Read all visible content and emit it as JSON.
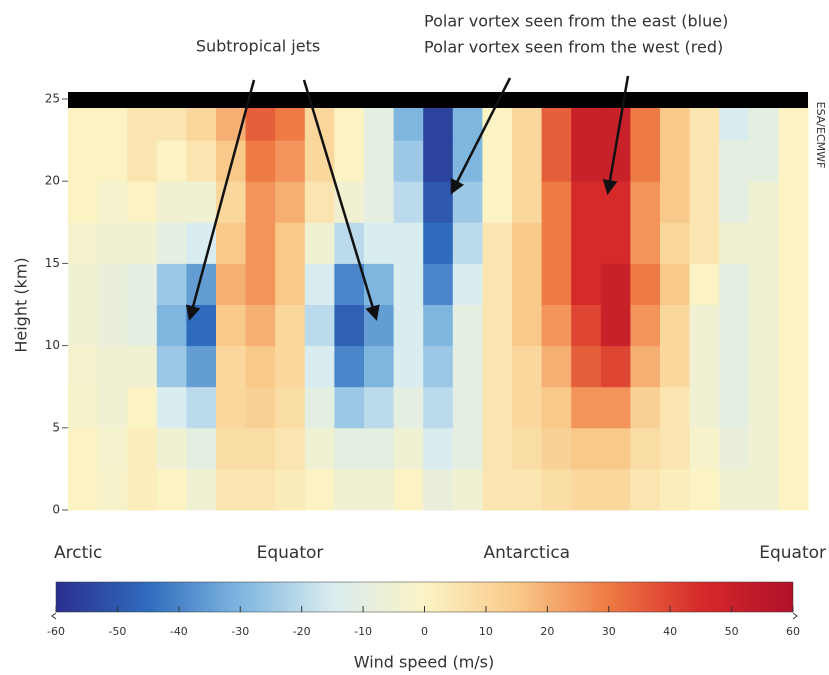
{
  "chart_data": {
    "type": "heatmap",
    "ylabel": "Height (km)",
    "ylim": [
      0,
      25
    ],
    "yticks": [
      0,
      5,
      10,
      15,
      20,
      25
    ],
    "categories": [
      "Arctic",
      null,
      null,
      null,
      null,
      null,
      null,
      "Equator",
      null,
      null,
      null,
      null,
      null,
      null,
      null,
      "Antarctica",
      null,
      null,
      null,
      null,
      null,
      null,
      null,
      null,
      "Equator"
    ],
    "z": [
      [
        0,
        -2,
        2,
        0,
        -5,
        5,
        5,
        3,
        0,
        -5,
        -5,
        0,
        -8,
        -5,
        5,
        5,
        8,
        10,
        10,
        5,
        2,
        0,
        -5,
        -5,
        0
      ],
      [
        0,
        -3,
        2,
        -5,
        -10,
        8,
        8,
        5,
        -5,
        -10,
        -10,
        -5,
        -15,
        -10,
        5,
        8,
        12,
        15,
        15,
        8,
        5,
        -2,
        -8,
        -5,
        0
      ],
      [
        -2,
        -5,
        0,
        -15,
        -20,
        10,
        12,
        8,
        -10,
        -25,
        -20,
        -10,
        -20,
        -10,
        5,
        10,
        15,
        25,
        25,
        12,
        5,
        -5,
        -10,
        -5,
        0
      ],
      [
        -3,
        -5,
        -5,
        -25,
        -35,
        10,
        15,
        10,
        -15,
        -40,
        -30,
        -15,
        -25,
        -10,
        5,
        10,
        20,
        35,
        40,
        20,
        10,
        -5,
        -10,
        -5,
        0
      ],
      [
        -5,
        -8,
        -10,
        -30,
        -45,
        15,
        20,
        10,
        -20,
        -48,
        -35,
        -15,
        -30,
        -10,
        5,
        15,
        25,
        40,
        50,
        25,
        10,
        -5,
        -10,
        -5,
        0
      ],
      [
        -5,
        -8,
        -10,
        -25,
        -35,
        20,
        25,
        15,
        -15,
        -40,
        -30,
        -15,
        -40,
        -15,
        5,
        15,
        30,
        45,
        50,
        30,
        15,
        0,
        -10,
        -5,
        0
      ],
      [
        -3,
        -5,
        -5,
        -10,
        -15,
        15,
        25,
        15,
        -5,
        -20,
        -15,
        -15,
        -45,
        -20,
        5,
        15,
        30,
        45,
        45,
        25,
        10,
        5,
        -5,
        -5,
        0
      ],
      [
        0,
        -3,
        0,
        -5,
        -5,
        10,
        25,
        20,
        5,
        -5,
        -10,
        -20,
        -50,
        -25,
        0,
        10,
        30,
        45,
        45,
        25,
        15,
        5,
        -10,
        -5,
        0
      ],
      [
        0,
        0,
        5,
        0,
        5,
        15,
        30,
        25,
        10,
        0,
        -10,
        -25,
        -55,
        -30,
        0,
        10,
        35,
        50,
        50,
        30,
        15,
        5,
        -10,
        -10,
        0
      ],
      [
        0,
        0,
        5,
        5,
        10,
        20,
        35,
        30,
        10,
        0,
        -10,
        -30,
        -55,
        -30,
        0,
        10,
        35,
        50,
        50,
        30,
        15,
        5,
        -15,
        -10,
        0
      ]
    ],
    "colorscale": [
      "#2b2f8f",
      "#2f6cbd",
      "#7fb6e0",
      "#d9ecf0",
      "#fbf3c4",
      "#f9c98a",
      "#ee7a44",
      "#d62a2a",
      "#b0102a"
    ],
    "zlim": [
      -60,
      60
    ],
    "zticks": [
      -60,
      -50,
      -40,
      -30,
      -20,
      -10,
      0,
      10,
      20,
      30,
      40,
      50,
      60
    ],
    "zlabel": "Wind speed (m/s)",
    "annotations": [
      "Subtropical jets",
      "Polar vortex seen from the east (blue)",
      "Polar vortex seen from the west (red)"
    ],
    "credit": "ESA/ECMWF"
  }
}
